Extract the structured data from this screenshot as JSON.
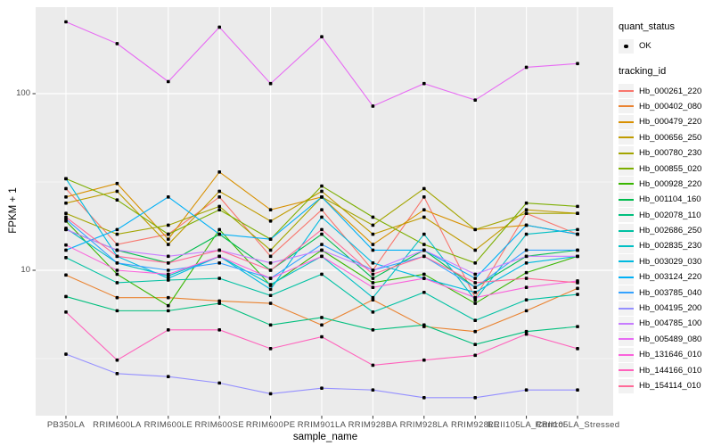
{
  "chart_data": {
    "type": "line",
    "title": "",
    "xlabel": "sample_name",
    "ylabel": "FPKM + 1",
    "y_scale": "log10",
    "ylim": [
      1.5,
      310
    ],
    "grid": "on",
    "legend_position": "right",
    "panel_bg": "#EBEBEB",
    "grid_color": "#FFFFFF",
    "point_color": "#000000",
    "y_ticks": [
      {
        "label": "100",
        "value": 100
      },
      {
        "label": "10",
        "value": 10
      }
    ],
    "y_minor_values": [
      31.62,
      3.162
    ],
    "categories": [
      "PB350LA",
      "RRIM600LA",
      "RRIM600LE",
      "RRIM600SE",
      "RRIM600PE",
      "RRIM901LA",
      "RRIM928BA",
      "RRIM928LA",
      "RRIM928LE",
      "RRII105LA_Control",
      "RRII105LA_Stressed"
    ],
    "series": [
      {
        "name": "Hb_000261_220",
        "color": "#F8766D",
        "values": [
          29,
          14,
          16,
          26,
          12,
          22,
          10,
          26,
          7.0,
          21,
          16
        ]
      },
      {
        "name": "Hb_000402_080",
        "color": "#EA8331",
        "values": [
          9.4,
          7.0,
          7.0,
          6.7,
          6.5,
          4.9,
          6.8,
          4.8,
          4.5,
          5.9,
          7.9
        ]
      },
      {
        "name": "Hb_000479_220",
        "color": "#D89000",
        "values": [
          26,
          31,
          15,
          36,
          22,
          26,
          14,
          22,
          17,
          18,
          16
        ]
      },
      {
        "name": "Hb_000656_250",
        "color": "#C09B00",
        "values": [
          24,
          28,
          14,
          28,
          19,
          28,
          16,
          20,
          13,
          22,
          21
        ]
      },
      {
        "name": "Hb_000780_230",
        "color": "#A3A500",
        "values": [
          21,
          16,
          18,
          23,
          13,
          26,
          18,
          29,
          17,
          21,
          21
        ]
      },
      {
        "name": "Hb_000855_020",
        "color": "#7CAE00",
        "values": [
          33,
          25,
          16,
          22,
          15,
          30,
          20,
          14,
          11,
          24,
          23
        ]
      },
      {
        "name": "Hb_000928_220",
        "color": "#39B600",
        "values": [
          19,
          9.5,
          6.3,
          17,
          8.2,
          13,
          8.5,
          9.5,
          6.5,
          9.7,
          12
        ]
      },
      {
        "name": "Hb_001104_160",
        "color": "#00BB4E",
        "values": [
          17,
          13,
          11,
          16,
          10,
          16,
          9.0,
          13,
          8.0,
          12,
          13
        ]
      },
      {
        "name": "Hb_002078_110",
        "color": "#00BF7D",
        "values": [
          7.1,
          5.9,
          5.9,
          6.5,
          4.9,
          5.4,
          4.6,
          4.9,
          3.8,
          4.5,
          4.8
        ]
      },
      {
        "name": "Hb_002686_250",
        "color": "#00C1A3",
        "values": [
          11.8,
          8.5,
          8.8,
          9.0,
          7.2,
          9.5,
          5.8,
          7.5,
          5.2,
          6.8,
          7.3
        ]
      },
      {
        "name": "Hb_002835_230",
        "color": "#00BFC4",
        "values": [
          17.3,
          11,
          9.3,
          12,
          8.3,
          12,
          7.0,
          16,
          6.8,
          16,
          17
        ]
      },
      {
        "name": "Hb_003029_030",
        "color": "#00BAE0",
        "values": [
          33,
          12,
          9.0,
          12,
          7.8,
          20,
          11,
          9.0,
          7.5,
          11,
          12
        ]
      },
      {
        "name": "Hb_003124_220",
        "color": "#00B0F6",
        "values": [
          13,
          17,
          26,
          16,
          15,
          26,
          13,
          13,
          9.0,
          18,
          16
        ]
      },
      {
        "name": "Hb_003785_040",
        "color": "#35A2FF",
        "values": [
          19.5,
          11,
          10,
          11,
          9.0,
          14,
          10,
          12,
          8.0,
          13,
          13
        ]
      },
      {
        "name": "Hb_004195_200",
        "color": "#9590FF",
        "values": [
          3.35,
          2.6,
          2.5,
          2.3,
          2.0,
          2.15,
          2.1,
          1.9,
          1.9,
          2.1,
          2.1
        ]
      },
      {
        "name": "Hb_004785_100",
        "color": "#C77CFF",
        "values": [
          17,
          13,
          12,
          13,
          11,
          13,
          10,
          13,
          9.5,
          12,
          12
        ]
      },
      {
        "name": "Hb_005489_080",
        "color": "#E76BF3",
        "values": [
          255,
          192,
          117,
          238,
          114,
          210,
          85,
          114,
          92,
          141,
          148
        ]
      },
      {
        "name": "Hb_131646_010",
        "color": "#FA62DB",
        "values": [
          13.9,
          10,
          9.5,
          12,
          9.0,
          12,
          8.0,
          9.0,
          7.0,
          8.0,
          8.7
        ]
      },
      {
        "name": "Hb_144166_010",
        "color": "#FF62BC",
        "values": [
          5.8,
          3.1,
          4.6,
          4.6,
          3.6,
          4.2,
          2.9,
          3.1,
          3.3,
          4.35,
          3.6
        ]
      },
      {
        "name": "Hb_154114_010",
        "color": "#FF6A98",
        "values": [
          20,
          12,
          11,
          13,
          10,
          17,
          9.5,
          12,
          8.5,
          9.0,
          8.5
        ]
      }
    ]
  },
  "legend": {
    "quant_status": {
      "title": "quant_status",
      "items": [
        {
          "label": "OK",
          "marker": "point"
        }
      ]
    },
    "tracking_id": {
      "title": "tracking_id"
    }
  }
}
